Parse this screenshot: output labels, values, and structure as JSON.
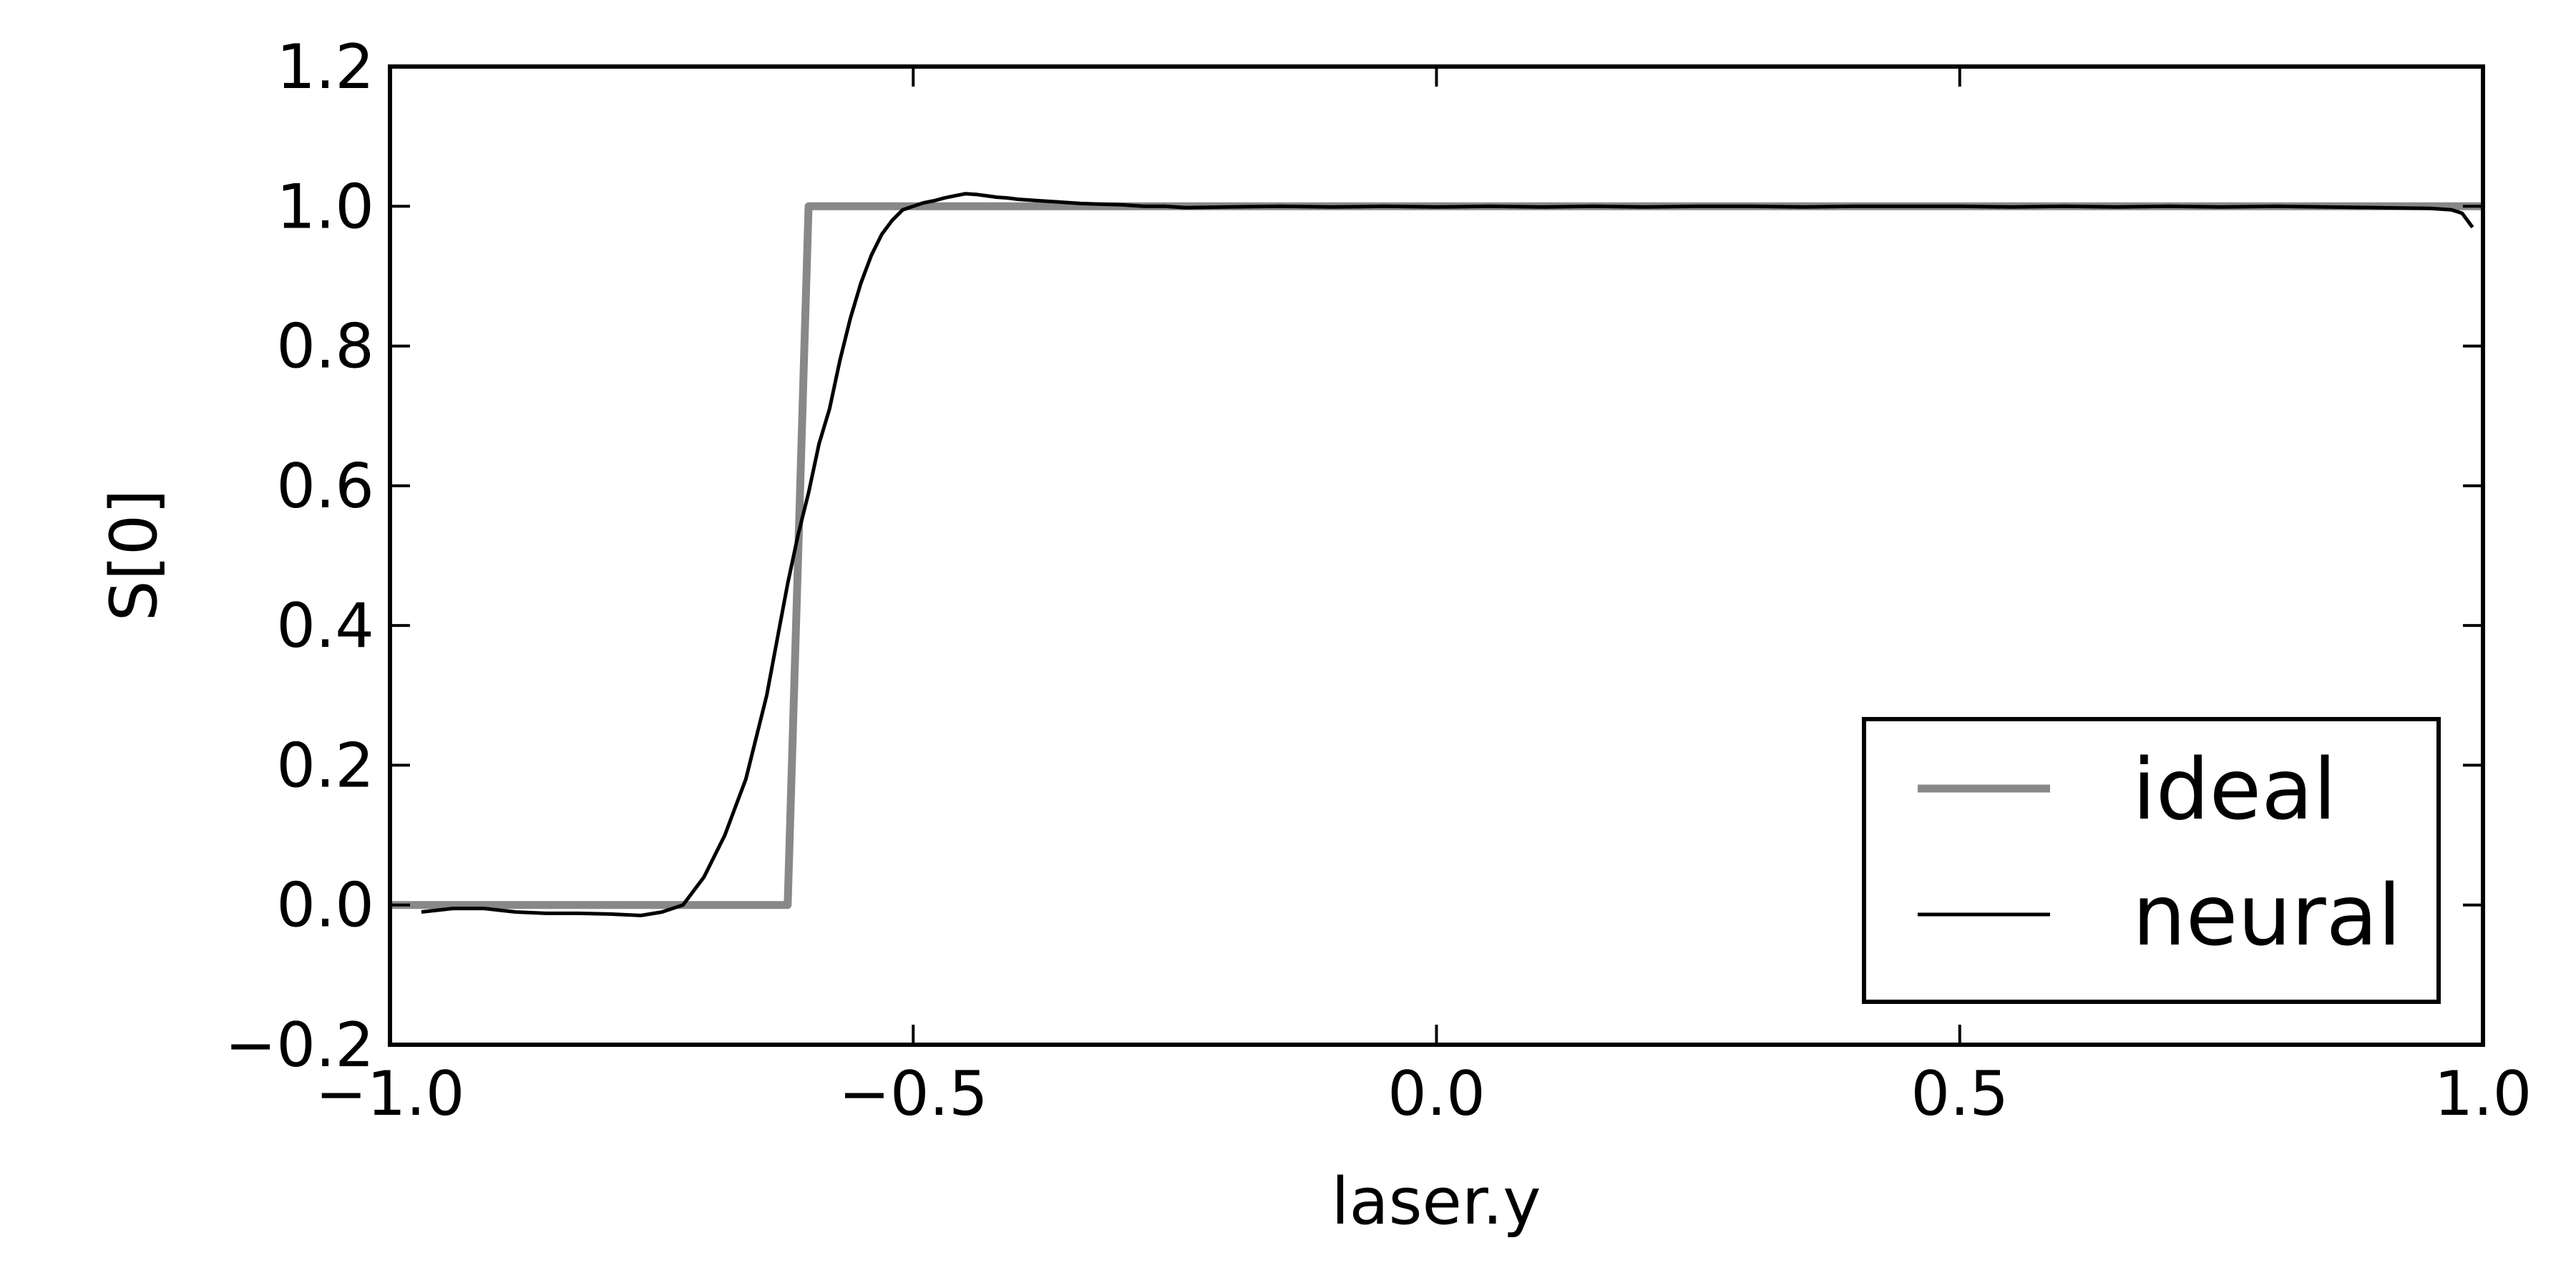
{
  "chart_data": {
    "type": "line",
    "title": "",
    "xlabel": "laser.y",
    "ylabel": "S[0]",
    "xlim": [
      -1.0,
      1.0
    ],
    "ylim": [
      -0.2,
      1.2
    ],
    "grid": false,
    "legend_position": "lower-right",
    "xticks": [
      {
        "value": -1.0,
        "label": "−1.0"
      },
      {
        "value": -0.5,
        "label": "−0.5"
      },
      {
        "value": 0.0,
        "label": "0.0"
      },
      {
        "value": 0.5,
        "label": "0.5"
      },
      {
        "value": 1.0,
        "label": "1.0"
      }
    ],
    "yticks": [
      {
        "value": -0.2,
        "label": "−0.2"
      },
      {
        "value": 0.0,
        "label": "0.0"
      },
      {
        "value": 0.2,
        "label": "0.2"
      },
      {
        "value": 0.4,
        "label": "0.4"
      },
      {
        "value": 0.6,
        "label": "0.6"
      },
      {
        "value": 0.8,
        "label": "0.8"
      },
      {
        "value": 1.0,
        "label": "1.0"
      },
      {
        "value": 1.2,
        "label": "1.2"
      }
    ],
    "series": [
      {
        "name": "ideal",
        "color": "#888888",
        "x": [
          -1.0,
          -0.62,
          -0.6,
          1.0
        ],
        "y": [
          0.0,
          0.0,
          1.0,
          1.0
        ]
      },
      {
        "name": "neural",
        "color": "#000000",
        "x": [
          -0.97,
          -0.94,
          -0.91,
          -0.88,
          -0.85,
          -0.82,
          -0.79,
          -0.76,
          -0.74,
          -0.72,
          -0.71,
          -0.7,
          -0.69,
          -0.68,
          -0.67,
          -0.66,
          -0.65,
          -0.64,
          -0.63,
          -0.62,
          -0.61,
          -0.6,
          -0.59,
          -0.58,
          -0.57,
          -0.56,
          -0.55,
          -0.54,
          -0.53,
          -0.52,
          -0.51,
          -0.5,
          -0.49,
          -0.48,
          -0.47,
          -0.46,
          -0.45,
          -0.44,
          -0.43,
          -0.42,
          -0.41,
          -0.4,
          -0.38,
          -0.36,
          -0.34,
          -0.32,
          -0.3,
          -0.28,
          -0.26,
          -0.24,
          -0.2,
          -0.15,
          -0.1,
          -0.05,
          0.0,
          0.05,
          0.1,
          0.15,
          0.2,
          0.25,
          0.3,
          0.35,
          0.4,
          0.45,
          0.5,
          0.55,
          0.6,
          0.65,
          0.7,
          0.75,
          0.8,
          0.85,
          0.9,
          0.95,
          0.97,
          0.98,
          0.99
        ],
        "y": [
          -0.01,
          -0.005,
          -0.005,
          -0.01,
          -0.012,
          -0.012,
          -0.013,
          -0.015,
          -0.01,
          0.0,
          0.02,
          0.04,
          0.07,
          0.1,
          0.14,
          0.18,
          0.24,
          0.3,
          0.38,
          0.46,
          0.53,
          0.59,
          0.66,
          0.71,
          0.78,
          0.84,
          0.89,
          0.93,
          0.96,
          0.98,
          0.995,
          1.0,
          1.005,
          1.008,
          1.012,
          1.015,
          1.018,
          1.017,
          1.015,
          1.013,
          1.012,
          1.01,
          1.008,
          1.006,
          1.004,
          1.003,
          1.002,
          1.0,
          1.0,
          0.998,
          0.999,
          1.0,
          0.999,
          1.0,
          0.999,
          1.0,
          0.999,
          1.0,
          0.999,
          1.0,
          1.0,
          0.999,
          1.0,
          1.0,
          1.0,
          0.999,
          1.0,
          0.999,
          1.0,
          0.999,
          1.0,
          0.999,
          0.998,
          0.997,
          0.995,
          0.99,
          0.97
        ]
      }
    ]
  }
}
